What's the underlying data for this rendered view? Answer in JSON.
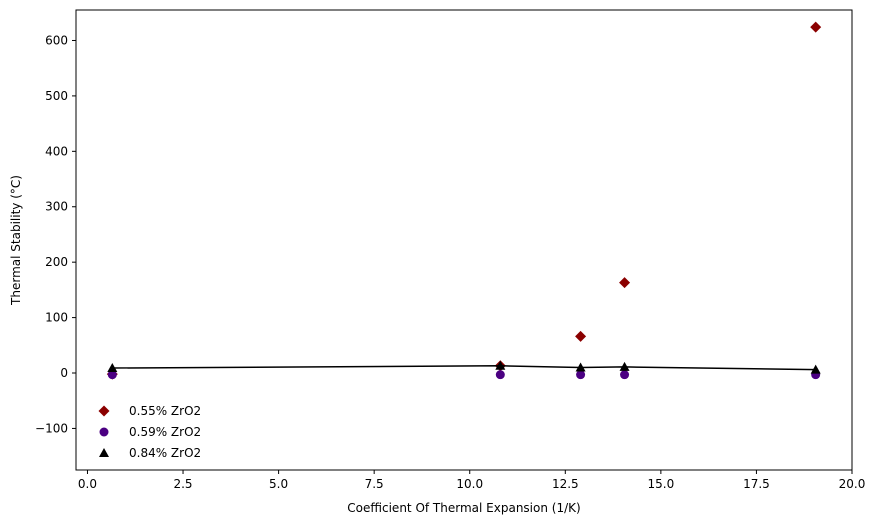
{
  "chart_data": {
    "type": "scatter",
    "title": "",
    "xlabel": "Coefficient Of Thermal Expansion (1/K)",
    "ylabel": "Thermal Stability (°C)",
    "xlim": [
      -0.3,
      20.0
    ],
    "ylim": [
      -175,
      655
    ],
    "xticks": [
      0.0,
      2.5,
      5.0,
      7.5,
      10.0,
      12.5,
      15.0,
      17.5,
      20.0
    ],
    "xtick_labels": [
      "0.0",
      "2.5",
      "5.0",
      "7.5",
      "10.0",
      "12.5",
      "15.0",
      "17.5",
      "20.0"
    ],
    "yticks": [
      -100,
      0,
      100,
      200,
      300,
      400,
      500,
      600
    ],
    "ytick_labels": [
      "−100",
      "0",
      "100",
      "200",
      "300",
      "400",
      "500",
      "600"
    ],
    "grid": false,
    "legend_position": "bottom-left",
    "series": [
      {
        "name": "0.55% ZrO2",
        "marker": "diamond",
        "color": "#8b0000",
        "x": [
          0.65,
          10.8,
          12.9,
          14.05,
          19.05
        ],
        "y": [
          -2,
          13,
          66,
          163,
          624
        ]
      },
      {
        "name": "0.59% ZrO2",
        "marker": "circle",
        "color": "#4b0082",
        "x": [
          0.65,
          10.8,
          12.9,
          14.05,
          19.05
        ],
        "y": [
          -3,
          -3,
          -3,
          -3,
          -3
        ]
      },
      {
        "name": "0.84% ZrO2",
        "marker": "triangle",
        "color": "#000000",
        "line": true,
        "x": [
          0.65,
          10.8,
          12.9,
          14.05,
          19.05
        ],
        "y": [
          9,
          13,
          10,
          11,
          6
        ]
      }
    ]
  }
}
